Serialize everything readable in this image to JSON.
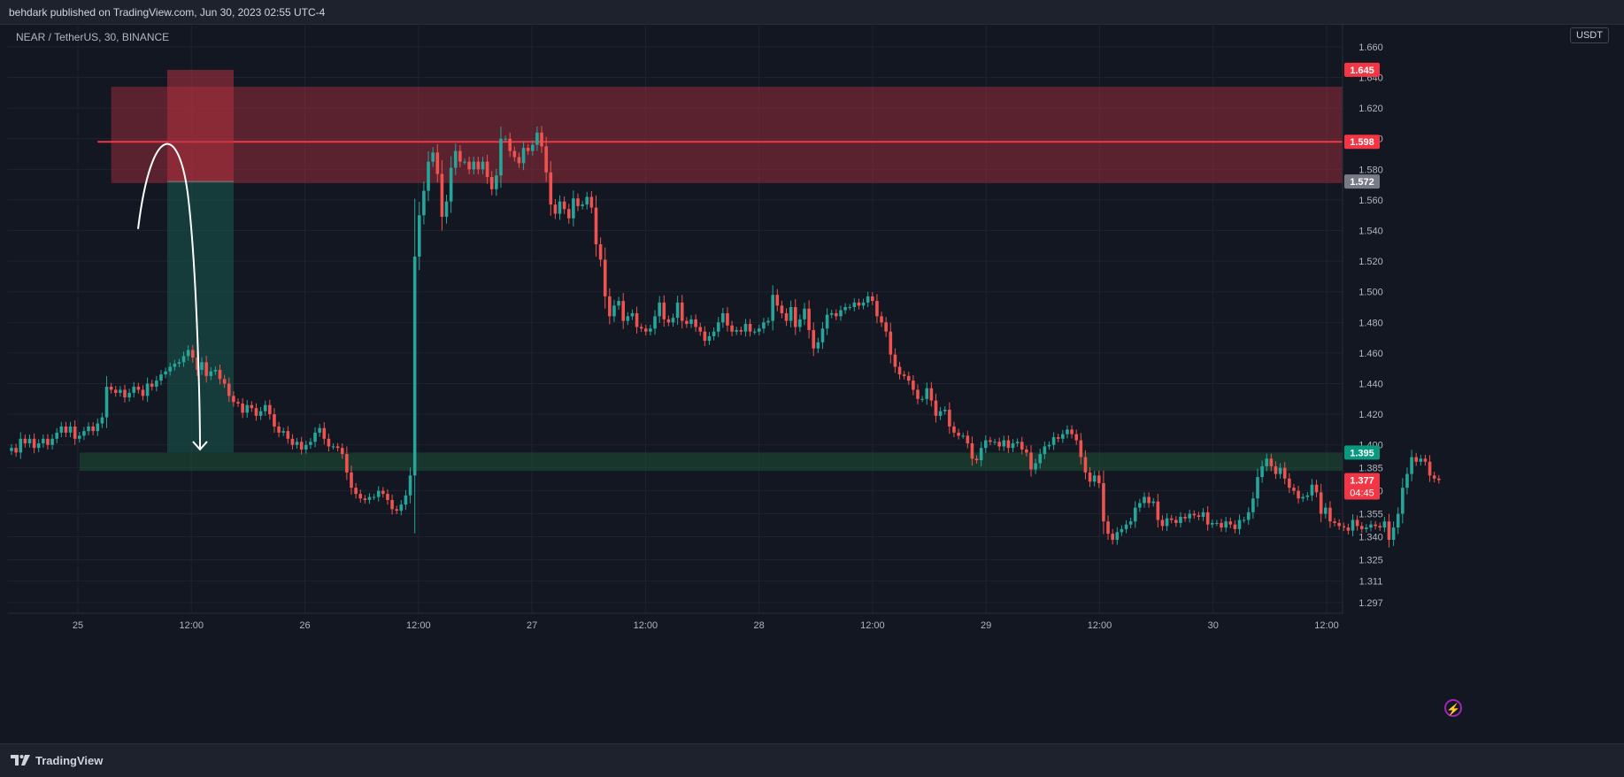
{
  "header": {
    "publisher_line": "behdark published on TradingView.com, Jun 30, 2023 02:55 UTC-4"
  },
  "symbol": {
    "label": "NEAR / TetherUS, 30, BINANCE"
  },
  "currency": "USDT",
  "footer": {
    "brand": "TradingView"
  },
  "colors": {
    "up": "#26a69a",
    "down": "#ef5350",
    "background": "#131722",
    "zone_supply": "#b2313f",
    "zone_demand": "#1f5e3a"
  },
  "chart_data": {
    "type": "candlestick",
    "title": "NEAR / TetherUS, 30, BINANCE",
    "x_ticks": [
      "25",
      "12:00",
      "26",
      "12:00",
      "27",
      "12:00",
      "28",
      "12:00",
      "29",
      "12:00",
      "30",
      "12:00"
    ],
    "y_ticks": [
      "1.297",
      "1.311",
      "1.325",
      "1.340",
      "1.355",
      "1.370",
      "1.385",
      "1.400",
      "1.420",
      "1.440",
      "1.460",
      "1.480",
      "1.500",
      "1.520",
      "1.540",
      "1.560",
      "1.580",
      "1.600",
      "1.620",
      "1.640",
      "1.660"
    ],
    "ylim": [
      1.29,
      1.675
    ],
    "price_labels": [
      {
        "text": "1.645",
        "value": 1.645,
        "color": "#f23645"
      },
      {
        "text": "1.598",
        "value": 1.598,
        "color": "#f23645"
      },
      {
        "text": "1.572",
        "value": 1.572,
        "color": "#787b86"
      },
      {
        "text": "1.395",
        "value": 1.395,
        "color": "#089981"
      },
      {
        "text": "1.377",
        "value": 1.377,
        "color": "#f23645"
      }
    ],
    "countdown": "04:45",
    "horizontal_line": {
      "value": 1.598,
      "from_index": 19
    },
    "zones": [
      {
        "name": "supply-zone",
        "top": 1.634,
        "bottom": 1.571,
        "from_index": 22,
        "color": "#b2313f"
      },
      {
        "name": "demand-zone",
        "top": 1.395,
        "bottom": 1.383,
        "from_index": 15,
        "color": "#1f5e3a"
      }
    ],
    "position": {
      "entry": 1.572,
      "stop": 1.645,
      "target": 1.395,
      "from_index": 25,
      "to_index": 28
    },
    "candles_close": [
      1.398,
      1.395,
      1.404,
      1.401,
      1.404,
      1.398,
      1.401,
      1.404,
      1.4,
      1.404,
      1.408,
      1.412,
      1.408,
      1.412,
      1.404,
      1.406,
      1.409,
      1.412,
      1.409,
      1.414,
      1.418,
      1.438,
      1.436,
      1.434,
      1.436,
      1.431,
      1.434,
      1.438,
      1.436,
      1.432,
      1.44,
      1.438,
      1.442,
      1.446,
      1.448,
      1.451,
      1.453,
      1.454,
      1.458,
      1.462,
      1.457,
      1.449,
      1.454,
      1.445,
      1.448,
      1.449,
      1.443,
      1.44,
      1.432,
      1.428,
      1.427,
      1.421,
      1.426,
      1.424,
      1.419,
      1.422,
      1.426,
      1.42,
      1.412,
      1.408,
      1.409,
      1.404,
      1.4,
      1.402,
      1.397,
      1.4,
      1.402,
      1.408,
      1.411,
      1.404,
      1.399,
      1.399,
      1.398,
      1.394,
      1.382,
      1.372,
      1.368,
      1.365,
      1.364,
      1.366,
      1.366,
      1.37,
      1.368,
      1.364,
      1.358,
      1.357,
      1.361,
      1.367,
      1.38,
      1.523,
      1.55,
      1.566,
      1.585,
      1.591,
      1.577,
      1.549,
      1.559,
      1.581,
      1.592,
      1.585,
      1.585,
      1.58,
      1.585,
      1.58,
      1.585,
      1.575,
      1.567,
      1.576,
      1.6,
      1.6,
      1.592,
      1.588,
      1.584,
      1.594,
      1.592,
      1.596,
      1.604,
      1.595,
      1.578,
      1.557,
      1.551,
      1.559,
      1.554,
      1.548,
      1.561,
      1.556,
      1.557,
      1.562,
      1.555,
      1.531,
      1.521,
      1.497,
      1.484,
      1.491,
      1.494,
      1.481,
      1.484,
      1.486,
      1.477,
      1.476,
      1.474,
      1.476,
      1.484,
      1.493,
      1.482,
      1.48,
      1.483,
      1.493,
      1.481,
      1.479,
      1.482,
      1.477,
      1.474,
      1.468,
      1.471,
      1.474,
      1.48,
      1.486,
      1.478,
      1.474,
      1.475,
      1.474,
      1.479,
      1.474,
      1.474,
      1.476,
      1.48,
      1.481,
      1.498,
      1.491,
      1.486,
      1.481,
      1.49,
      1.477,
      1.482,
      1.489,
      1.475,
      1.463,
      1.467,
      1.476,
      1.485,
      1.486,
      1.484,
      1.488,
      1.49,
      1.49,
      1.493,
      1.491,
      1.493,
      1.497,
      1.494,
      1.484,
      1.48,
      1.474,
      1.459,
      1.451,
      1.446,
      1.445,
      1.442,
      1.436,
      1.43,
      1.43,
      1.437,
      1.429,
      1.419,
      1.422,
      1.423,
      1.412,
      1.408,
      1.406,
      1.406,
      1.401,
      1.391,
      1.39,
      1.398,
      1.403,
      1.402,
      1.402,
      1.399,
      1.403,
      1.398,
      1.401,
      1.402,
      1.397,
      1.395,
      1.384,
      1.388,
      1.394,
      1.399,
      1.4,
      1.405,
      1.404,
      1.407,
      1.41,
      1.407,
      1.403,
      1.392,
      1.382,
      1.376,
      1.38,
      1.375,
      1.35,
      1.342,
      1.338,
      1.343,
      1.345,
      1.348,
      1.35,
      1.359,
      1.362,
      1.366,
      1.362,
      1.363,
      1.351,
      1.347,
      1.352,
      1.351,
      1.349,
      1.353,
      1.352,
      1.355,
      1.354,
      1.353,
      1.356,
      1.348,
      1.349,
      1.349,
      1.346,
      1.35,
      1.348,
      1.345,
      1.351,
      1.351,
      1.356,
      1.365,
      1.379,
      1.386,
      1.391,
      1.386,
      1.381,
      1.385,
      1.378,
      1.372,
      1.37,
      1.365,
      1.366,
      1.367,
      1.374,
      1.369,
      1.355,
      1.359,
      1.35,
      1.349,
      1.347,
      1.346,
      1.344,
      1.351,
      1.347,
      1.345,
      1.346,
      1.348,
      1.347,
      1.346,
      1.35,
      1.338,
      1.346,
      1.355,
      1.372,
      1.381,
      1.392,
      1.389,
      1.391,
      1.389,
      1.38,
      1.378,
      1.377
    ]
  }
}
